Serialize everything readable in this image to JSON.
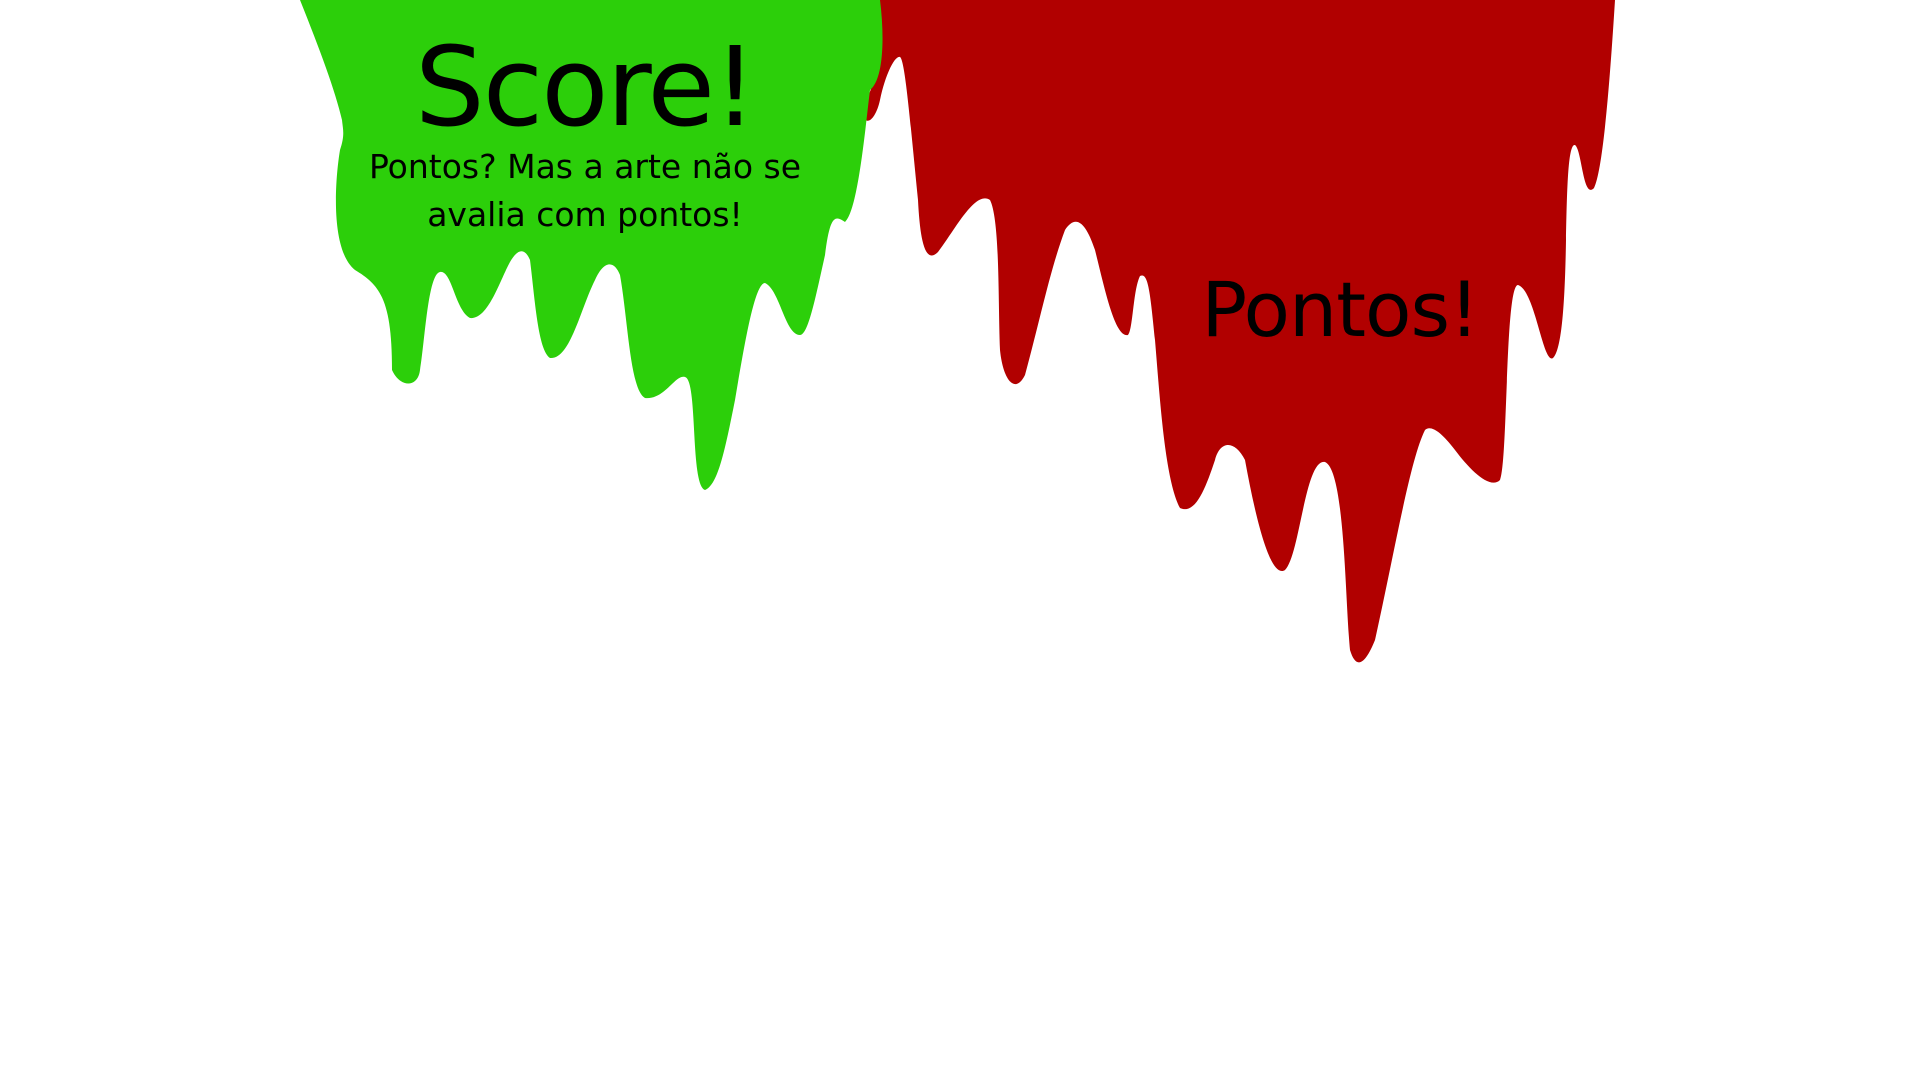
{
  "colors": {
    "background": "#ffffff",
    "green_paint": "#2ccf0a",
    "red_paint": "#b10000",
    "text": "#000000"
  },
  "green_drip": {
    "title": "Score!",
    "subtitle": "Pontos? Mas a arte não se avalia com pontos!"
  },
  "red_drip": {
    "label": "Pontos!"
  }
}
